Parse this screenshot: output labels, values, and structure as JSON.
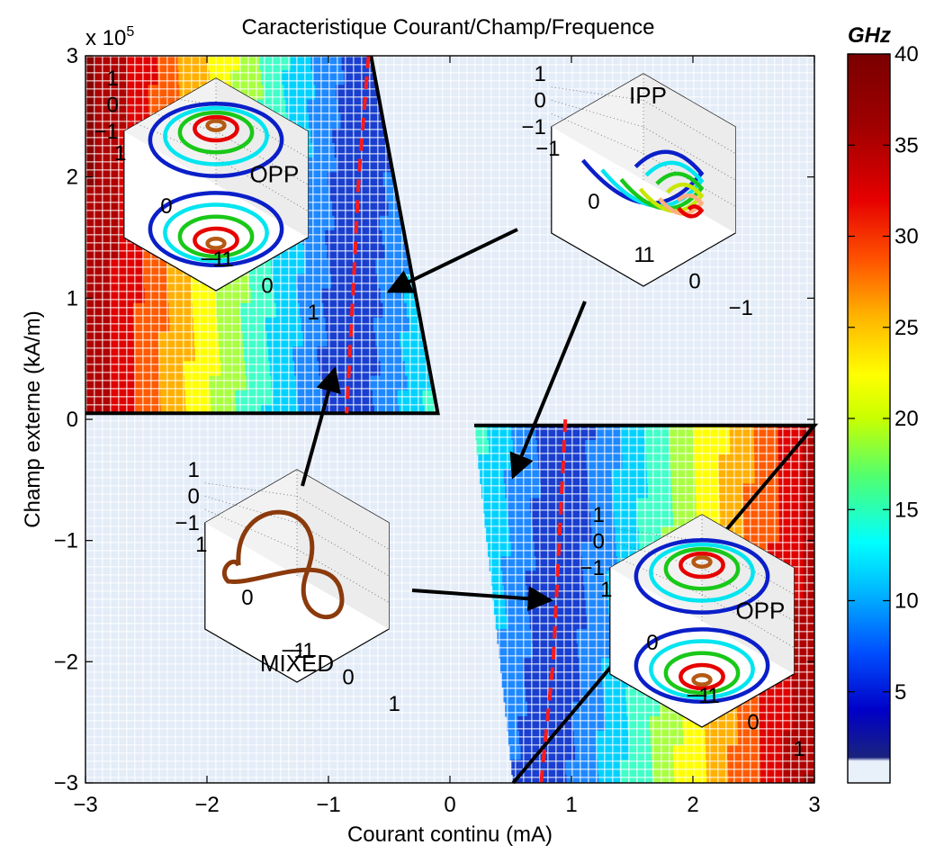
{
  "chart_data": {
    "type": "heatmap",
    "title": "Caracteristique Courant/Champ/Frequence",
    "xlabel": "Courant continu (mA)",
    "ylabel": "Champ externe (kA/m)",
    "y_multiplier": "x 10",
    "y_multiplier_exponent": "5",
    "xlim": [
      -3,
      3
    ],
    "ylim": [
      -3,
      3
    ],
    "x_ticks": [
      "−3",
      "−2",
      "−1",
      "0",
      "1",
      "2",
      "3"
    ],
    "y_ticks": [
      "−3",
      "−2",
      "−1",
      "0",
      "1",
      "2",
      "3"
    ],
    "colorbar": {
      "label": "GHz",
      "range": [
        0,
        40
      ],
      "ticks": [
        "5",
        "10",
        "15",
        "20",
        "25",
        "30",
        "35",
        "40"
      ],
      "colors": [
        "#e8f0fa",
        "#1a237e",
        "#0000c8",
        "#0050ff",
        "#00b4ff",
        "#00ffff",
        "#50ff70",
        "#c8ff00",
        "#ffff00",
        "#ffb400",
        "#ff5000",
        "#e60000",
        "#a00000",
        "#7a0000"
      ]
    },
    "dashed_line": {
      "color": "#ff1a1a",
      "upper": [
        [
          -0.67,
          3.0
        ],
        [
          -0.75,
          2.0
        ],
        [
          -0.8,
          1.0
        ],
        [
          -0.85,
          0.05
        ]
      ],
      "lower": [
        [
          0.95,
          0.0
        ],
        [
          0.9,
          -1.0
        ],
        [
          0.85,
          -2.0
        ],
        [
          0.75,
          -3.0
        ]
      ]
    },
    "boundaries": {
      "upper_left": [
        [
          -3.0,
          0.05
        ],
        [
          -0.1,
          0.05
        ],
        [
          -0.65,
          3.0
        ]
      ],
      "lower_right": [
        [
          0.2,
          -0.05
        ],
        [
          3.0,
          -0.05
        ],
        [
          0.52,
          -3.0
        ]
      ]
    },
    "annotations": [
      "OPP",
      "IPP",
      "MIXED",
      "OPP"
    ],
    "insets": [
      {
        "name": "opp-top-left",
        "label": "OPP",
        "mode": "opp",
        "z_ticks": [
          "1",
          "0",
          "−1"
        ],
        "x_ticks": [
          "1",
          "0",
          "−1"
        ],
        "y_ticks": [
          "−1",
          "0",
          "1"
        ]
      },
      {
        "name": "ipp",
        "label": "IPP",
        "mode": "ipp",
        "z_ticks": [
          "1",
          "0",
          "−1"
        ],
        "x_ticks": [
          "−1",
          "0",
          "1"
        ],
        "y_ticks": [
          "1",
          "0",
          "−1"
        ]
      },
      {
        "name": "mixed",
        "label": "MIXED",
        "mode": "mixed",
        "z_ticks": [
          "1",
          "0",
          "−1"
        ],
        "x_ticks": [
          "1",
          "0",
          "−1"
        ],
        "y_ticks": [
          "−1",
          "0",
          "1"
        ]
      },
      {
        "name": "opp-bottom-right",
        "label": "OPP",
        "mode": "opp",
        "z_ticks": [
          "1",
          "0",
          "−1"
        ],
        "x_ticks": [
          "1",
          "0",
          "−1"
        ],
        "y_ticks": [
          "−1",
          "0",
          "1"
        ]
      }
    ]
  }
}
